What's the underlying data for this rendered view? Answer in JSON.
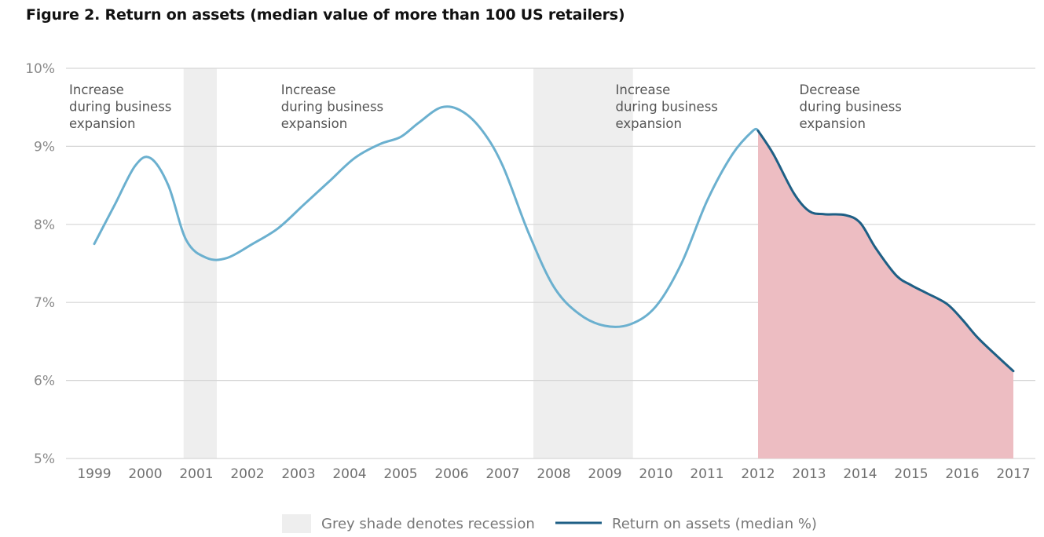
{
  "chart_data": {
    "type": "line",
    "title": "Figure 2. Return on assets (median value of more than 100 US retailers)",
    "xlabel": "",
    "ylabel": "",
    "x_ticks": [
      "1999",
      "2000",
      "2001",
      "2002",
      "2003",
      "2004",
      "2005",
      "2006",
      "2007",
      "2008",
      "2009",
      "2010",
      "2011",
      "2012",
      "2013",
      "2014",
      "2015",
      "2016",
      "2017"
    ],
    "y_ticks": [
      "10%",
      "9%",
      "8%",
      "7%",
      "6%",
      "5%"
    ],
    "ylim": [
      5,
      10
    ],
    "xlim": [
      1998.8,
      2017.2
    ],
    "grid": true,
    "series": [
      {
        "name": "Return on assets (median %)",
        "x": [
          1999,
          1999.4,
          1999.8,
          2000.1,
          2000.45,
          2000.8,
          2001.2,
          2001.6,
          2002.1,
          2002.6,
          2003.1,
          2003.6,
          2004.1,
          2004.6,
          2005.0,
          2005.35,
          2005.8,
          2006.2,
          2006.6,
          2007.0,
          2007.5,
          2008.0,
          2008.5,
          2009.0,
          2009.5,
          2010.0,
          2010.5,
          2011.0,
          2011.5,
          2011.9,
          2012.0,
          2012.3,
          2012.7,
          2013.0,
          2013.3,
          2013.7,
          2014.0,
          2014.3,
          2014.7,
          2015.0,
          2015.3,
          2015.7,
          2016.0,
          2016.3,
          2016.7,
          2017.0
        ],
        "values": [
          7.75,
          8.25,
          8.75,
          8.85,
          8.5,
          7.8,
          7.57,
          7.57,
          7.75,
          7.95,
          8.25,
          8.55,
          8.85,
          9.03,
          9.12,
          9.3,
          9.5,
          9.45,
          9.2,
          8.75,
          7.9,
          7.2,
          6.85,
          6.7,
          6.72,
          6.95,
          7.5,
          8.3,
          8.9,
          9.2,
          9.2,
          8.9,
          8.4,
          8.17,
          8.13,
          8.12,
          8.02,
          7.7,
          7.35,
          7.22,
          7.12,
          6.98,
          6.78,
          6.55,
          6.3,
          6.12
        ]
      }
    ],
    "highlight": {
      "from": 2012,
      "to": 2017,
      "color": "#edbdc2",
      "line_color": "#1e5f85"
    },
    "recessions": [
      {
        "from": 2000.75,
        "to": 2001.4
      },
      {
        "from": 2007.6,
        "to": 2009.55
      }
    ],
    "colors": {
      "line": "#6bb0cf",
      "line_highlight": "#1e5f85",
      "recession": "#eeeeee",
      "grid": "#d6d6d6"
    },
    "annotations": [
      {
        "lines": [
          "Increase",
          "during business",
          "expansion"
        ],
        "x": 1999
      },
      {
        "lines": [
          "Increase",
          "during business",
          "expansion"
        ],
        "x": 2003.15
      },
      {
        "lines": [
          "Increase",
          "during business",
          "expansion"
        ],
        "x": 2009.7
      },
      {
        "lines": [
          "Decrease",
          "during business",
          "expansion"
        ],
        "x": 2013.3
      }
    ],
    "legend": {
      "position": "bottom-center",
      "items": [
        {
          "label": "Grey shade denotes recession",
          "kind": "swatch",
          "color": "#eeeeee"
        },
        {
          "label": "Return on assets (median %)",
          "kind": "line",
          "color": "#1e5f85"
        }
      ]
    }
  }
}
